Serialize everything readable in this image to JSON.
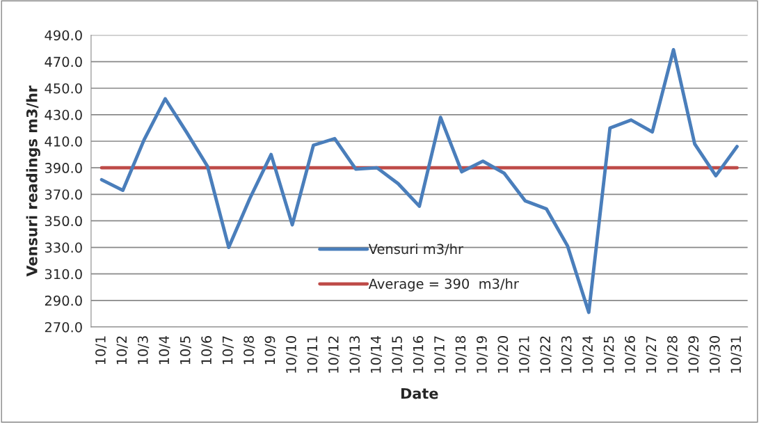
{
  "chart_data": {
    "type": "line",
    "xlabel": "Date",
    "ylabel": "Vensuri readings m3/hr",
    "categories": [
      "10/1",
      "10/2",
      "10/3",
      "10/4",
      "10/5",
      "10/6",
      "10/7",
      "10/8",
      "10/9",
      "10/10",
      "10/11",
      "10/12",
      "10/13",
      "10/14",
      "10/15",
      "10/16",
      "10/17",
      "10/18",
      "10/19",
      "10/20",
      "10/21",
      "10/22",
      "10/23",
      "10/24",
      "10/25",
      "10/26",
      "10/27",
      "10/28",
      "10/29",
      "10/30",
      "10/31"
    ],
    "series": [
      {
        "name": "Vensuri m3/hr",
        "color": "#4a7ebb",
        "values": [
          381,
          373,
          411,
          442,
          417,
          391,
          330,
          367,
          400,
          347,
          407,
          412,
          389,
          390,
          378,
          361,
          428,
          387,
          395,
          386,
          365,
          359,
          331,
          281,
          420,
          426,
          417,
          479,
          408,
          384,
          406
        ]
      }
    ],
    "ref_lines": [
      {
        "axis": "y",
        "value": 390,
        "label": "Average = 390  m3/hr",
        "color": "#be4b48",
        "line_style": "solid"
      }
    ],
    "ylim": [
      270,
      490
    ],
    "yticks": [
      {
        "value": 270,
        "label": "270.0"
      },
      {
        "value": 290,
        "label": "290.0"
      },
      {
        "value": 310,
        "label": "310.0"
      },
      {
        "value": 330,
        "label": "330.0"
      },
      {
        "value": 350,
        "label": "350.0"
      },
      {
        "value": 370,
        "label": "370.0"
      },
      {
        "value": 390,
        "label": "390.0"
      },
      {
        "value": 410,
        "label": "410.0"
      },
      {
        "value": 430,
        "label": "430.0"
      },
      {
        "value": 450,
        "label": "450.0"
      },
      {
        "value": 470,
        "label": "470.0"
      },
      {
        "value": 490,
        "label": "490.0"
      }
    ],
    "grid": "y",
    "legend": "bottom",
    "marker": "none",
    "line_style": "solid"
  }
}
